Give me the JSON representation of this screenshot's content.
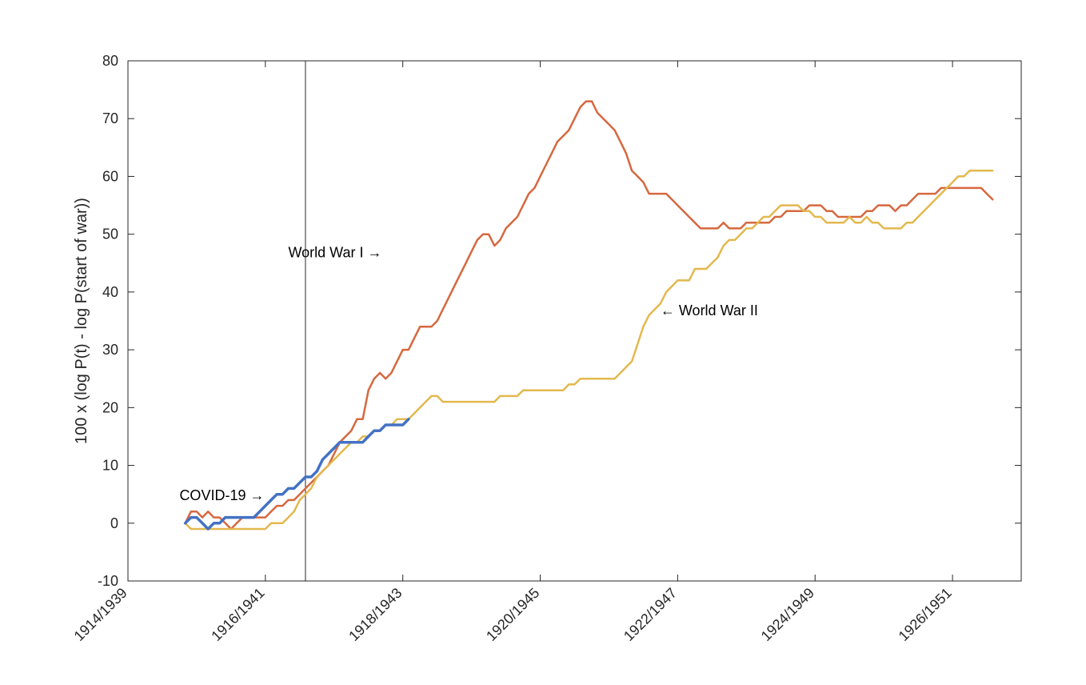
{
  "chart_data": {
    "type": "line",
    "title": "",
    "xlabel": "",
    "ylabel": "100 x (log P(t)  - log P(start of war))",
    "x_unit": "months since start of first year shown",
    "xlim": [
      0,
      156
    ],
    "ylim": [
      -10,
      80
    ],
    "y_ticks": [
      -10,
      0,
      10,
      20,
      30,
      40,
      50,
      60,
      70,
      80
    ],
    "x_ticks": [
      {
        "value": 0,
        "label": "1914/1939"
      },
      {
        "value": 24,
        "label": "1916/1941"
      },
      {
        "value": 48,
        "label": "1918/1943"
      },
      {
        "value": 72,
        "label": "1920/1945"
      },
      {
        "value": 96,
        "label": "1922/1947"
      },
      {
        "value": 120,
        "label": "1924/1949"
      },
      {
        "value": 144,
        "label": "1926/1951"
      }
    ],
    "grid": false,
    "box": true,
    "vertical_line_x": 31,
    "series": [
      {
        "name": "World War I",
        "color": "#d6683f",
        "points": [
          [
            10,
            0
          ],
          [
            11,
            2
          ],
          [
            12,
            2
          ],
          [
            13,
            1
          ],
          [
            14,
            2
          ],
          [
            15,
            1
          ],
          [
            16,
            1
          ],
          [
            17,
            0
          ],
          [
            18,
            -1
          ],
          [
            19,
            0
          ],
          [
            20,
            1
          ],
          [
            21,
            1
          ],
          [
            22,
            1
          ],
          [
            23,
            1
          ],
          [
            24,
            1
          ],
          [
            25,
            2
          ],
          [
            26,
            3
          ],
          [
            27,
            3
          ],
          [
            28,
            4
          ],
          [
            29,
            4
          ],
          [
            30,
            5
          ],
          [
            31,
            6
          ],
          [
            32,
            7
          ],
          [
            33,
            8
          ],
          [
            34,
            9
          ],
          [
            35,
            10
          ],
          [
            36,
            12
          ],
          [
            37,
            14
          ],
          [
            38,
            15
          ],
          [
            39,
            16
          ],
          [
            40,
            18
          ],
          [
            41,
            18
          ],
          [
            42,
            23
          ],
          [
            43,
            25
          ],
          [
            44,
            26
          ],
          [
            45,
            25
          ],
          [
            46,
            26
          ],
          [
            47,
            28
          ],
          [
            48,
            30
          ],
          [
            49,
            30
          ],
          [
            50,
            32
          ],
          [
            51,
            34
          ],
          [
            52,
            34
          ],
          [
            53,
            34
          ],
          [
            54,
            35
          ],
          [
            55,
            37
          ],
          [
            56,
            39
          ],
          [
            57,
            41
          ],
          [
            58,
            43
          ],
          [
            59,
            45
          ],
          [
            60,
            47
          ],
          [
            61,
            49
          ],
          [
            62,
            50
          ],
          [
            63,
            50
          ],
          [
            64,
            48
          ],
          [
            65,
            49
          ],
          [
            66,
            51
          ],
          [
            67,
            52
          ],
          [
            68,
            53
          ],
          [
            69,
            55
          ],
          [
            70,
            57
          ],
          [
            71,
            58
          ],
          [
            72,
            60
          ],
          [
            73,
            62
          ],
          [
            74,
            64
          ],
          [
            75,
            66
          ],
          [
            76,
            67
          ],
          [
            77,
            68
          ],
          [
            78,
            70
          ],
          [
            79,
            72
          ],
          [
            80,
            73
          ],
          [
            81,
            73
          ],
          [
            82,
            71
          ],
          [
            83,
            70
          ],
          [
            84,
            69
          ],
          [
            85,
            68
          ],
          [
            86,
            66
          ],
          [
            87,
            64
          ],
          [
            88,
            61
          ],
          [
            89,
            60
          ],
          [
            90,
            59
          ],
          [
            91,
            57
          ],
          [
            92,
            57
          ],
          [
            93,
            57
          ],
          [
            94,
            57
          ],
          [
            95,
            56
          ],
          [
            96,
            55
          ],
          [
            97,
            54
          ],
          [
            98,
            53
          ],
          [
            99,
            52
          ],
          [
            100,
            51
          ],
          [
            101,
            51
          ],
          [
            102,
            51
          ],
          [
            103,
            51
          ],
          [
            104,
            52
          ],
          [
            105,
            51
          ],
          [
            106,
            51
          ],
          [
            107,
            51
          ],
          [
            108,
            52
          ],
          [
            109,
            52
          ],
          [
            110,
            52
          ],
          [
            111,
            52
          ],
          [
            112,
            52
          ],
          [
            113,
            53
          ],
          [
            114,
            53
          ],
          [
            115,
            54
          ],
          [
            116,
            54
          ],
          [
            117,
            54
          ],
          [
            118,
            54
          ],
          [
            119,
            55
          ],
          [
            120,
            55
          ],
          [
            121,
            55
          ],
          [
            122,
            54
          ],
          [
            123,
            54
          ],
          [
            124,
            53
          ],
          [
            125,
            53
          ],
          [
            126,
            53
          ],
          [
            127,
            53
          ],
          [
            128,
            53
          ],
          [
            129,
            54
          ],
          [
            130,
            54
          ],
          [
            131,
            55
          ],
          [
            132,
            55
          ],
          [
            133,
            55
          ],
          [
            134,
            54
          ],
          [
            135,
            55
          ],
          [
            136,
            55
          ],
          [
            137,
            56
          ],
          [
            138,
            57
          ],
          [
            139,
            57
          ],
          [
            140,
            57
          ],
          [
            141,
            57
          ],
          [
            142,
            58
          ],
          [
            143,
            58
          ],
          [
            144,
            58
          ],
          [
            145,
            58
          ],
          [
            146,
            58
          ],
          [
            147,
            58
          ],
          [
            148,
            58
          ],
          [
            149,
            58
          ],
          [
            150,
            57
          ],
          [
            151,
            56
          ]
        ]
      },
      {
        "name": "World War II",
        "color": "#e3b84e",
        "points": [
          [
            10,
            0
          ],
          [
            11,
            -1
          ],
          [
            12,
            -1
          ],
          [
            13,
            -1
          ],
          [
            14,
            -1
          ],
          [
            15,
            -1
          ],
          [
            16,
            -1
          ],
          [
            17,
            -1
          ],
          [
            18,
            -1
          ],
          [
            19,
            -1
          ],
          [
            20,
            -1
          ],
          [
            21,
            -1
          ],
          [
            22,
            -1
          ],
          [
            23,
            -1
          ],
          [
            24,
            -1
          ],
          [
            25,
            0
          ],
          [
            26,
            0
          ],
          [
            27,
            0
          ],
          [
            28,
            1
          ],
          [
            29,
            2
          ],
          [
            30,
            4
          ],
          [
            31,
            5
          ],
          [
            32,
            6
          ],
          [
            33,
            8
          ],
          [
            34,
            9
          ],
          [
            35,
            10
          ],
          [
            36,
            11
          ],
          [
            37,
            12
          ],
          [
            38,
            13
          ],
          [
            39,
            14
          ],
          [
            40,
            14
          ],
          [
            41,
            15
          ],
          [
            42,
            15
          ],
          [
            43,
            16
          ],
          [
            44,
            16
          ],
          [
            45,
            17
          ],
          [
            46,
            17
          ],
          [
            47,
            18
          ],
          [
            48,
            18
          ],
          [
            49,
            18
          ],
          [
            50,
            19
          ],
          [
            51,
            20
          ],
          [
            52,
            21
          ],
          [
            53,
            22
          ],
          [
            54,
            22
          ],
          [
            55,
            21
          ],
          [
            56,
            21
          ],
          [
            57,
            21
          ],
          [
            58,
            21
          ],
          [
            59,
            21
          ],
          [
            60,
            21
          ],
          [
            61,
            21
          ],
          [
            62,
            21
          ],
          [
            63,
            21
          ],
          [
            64,
            21
          ],
          [
            65,
            22
          ],
          [
            66,
            22
          ],
          [
            67,
            22
          ],
          [
            68,
            22
          ],
          [
            69,
            23
          ],
          [
            70,
            23
          ],
          [
            71,
            23
          ],
          [
            72,
            23
          ],
          [
            73,
            23
          ],
          [
            74,
            23
          ],
          [
            75,
            23
          ],
          [
            76,
            23
          ],
          [
            77,
            24
          ],
          [
            78,
            24
          ],
          [
            79,
            25
          ],
          [
            80,
            25
          ],
          [
            81,
            25
          ],
          [
            82,
            25
          ],
          [
            83,
            25
          ],
          [
            84,
            25
          ],
          [
            85,
            25
          ],
          [
            86,
            26
          ],
          [
            87,
            27
          ],
          [
            88,
            28
          ],
          [
            89,
            31
          ],
          [
            90,
            34
          ],
          [
            91,
            36
          ],
          [
            92,
            37
          ],
          [
            93,
            38
          ],
          [
            94,
            40
          ],
          [
            95,
            41
          ],
          [
            96,
            42
          ],
          [
            97,
            42
          ],
          [
            98,
            42
          ],
          [
            99,
            44
          ],
          [
            100,
            44
          ],
          [
            101,
            44
          ],
          [
            102,
            45
          ],
          [
            103,
            46
          ],
          [
            104,
            48
          ],
          [
            105,
            49
          ],
          [
            106,
            49
          ],
          [
            107,
            50
          ],
          [
            108,
            51
          ],
          [
            109,
            51
          ],
          [
            110,
            52
          ],
          [
            111,
            53
          ],
          [
            112,
            53
          ],
          [
            113,
            54
          ],
          [
            114,
            55
          ],
          [
            115,
            55
          ],
          [
            116,
            55
          ],
          [
            117,
            55
          ],
          [
            118,
            54
          ],
          [
            119,
            54
          ],
          [
            120,
            53
          ],
          [
            121,
            53
          ],
          [
            122,
            52
          ],
          [
            123,
            52
          ],
          [
            124,
            52
          ],
          [
            125,
            52
          ],
          [
            126,
            53
          ],
          [
            127,
            52
          ],
          [
            128,
            52
          ],
          [
            129,
            53
          ],
          [
            130,
            52
          ],
          [
            131,
            52
          ],
          [
            132,
            51
          ],
          [
            133,
            51
          ],
          [
            134,
            51
          ],
          [
            135,
            51
          ],
          [
            136,
            52
          ],
          [
            137,
            52
          ],
          [
            138,
            53
          ],
          [
            139,
            54
          ],
          [
            140,
            55
          ],
          [
            141,
            56
          ],
          [
            142,
            57
          ],
          [
            143,
            58
          ],
          [
            144,
            59
          ],
          [
            145,
            60
          ],
          [
            146,
            60
          ],
          [
            147,
            61
          ],
          [
            148,
            61
          ],
          [
            149,
            61
          ],
          [
            150,
            61
          ],
          [
            151,
            61
          ]
        ]
      },
      {
        "name": "COVID-19",
        "color": "#4472c4",
        "points": [
          [
            10,
            0
          ],
          [
            11,
            1
          ],
          [
            12,
            1
          ],
          [
            13,
            0
          ],
          [
            14,
            -1
          ],
          [
            15,
            0
          ],
          [
            16,
            0
          ],
          [
            17,
            1
          ],
          [
            18,
            1
          ],
          [
            19,
            1
          ],
          [
            20,
            1
          ],
          [
            21,
            1
          ],
          [
            22,
            1
          ],
          [
            23,
            2
          ],
          [
            24,
            3
          ],
          [
            25,
            4
          ],
          [
            26,
            5
          ],
          [
            27,
            5
          ],
          [
            28,
            6
          ],
          [
            29,
            6
          ],
          [
            30,
            7
          ],
          [
            31,
            8
          ],
          [
            32,
            8
          ],
          [
            33,
            9
          ],
          [
            34,
            11
          ],
          [
            35,
            12
          ],
          [
            36,
            13
          ],
          [
            37,
            14
          ],
          [
            38,
            14
          ],
          [
            39,
            14
          ],
          [
            40,
            14
          ],
          [
            41,
            14
          ],
          [
            42,
            15
          ],
          [
            43,
            16
          ],
          [
            44,
            16
          ],
          [
            45,
            17
          ],
          [
            46,
            17
          ],
          [
            47,
            17
          ],
          [
            48,
            17
          ],
          [
            49,
            18
          ]
        ]
      }
    ],
    "annotations": [
      {
        "text": "World War I →",
        "x": 28,
        "y": 46
      },
      {
        "text": "← World War II",
        "x": 93,
        "y": 36
      },
      {
        "text": "COVID-19 →",
        "x": 9,
        "y": 4
      }
    ]
  }
}
